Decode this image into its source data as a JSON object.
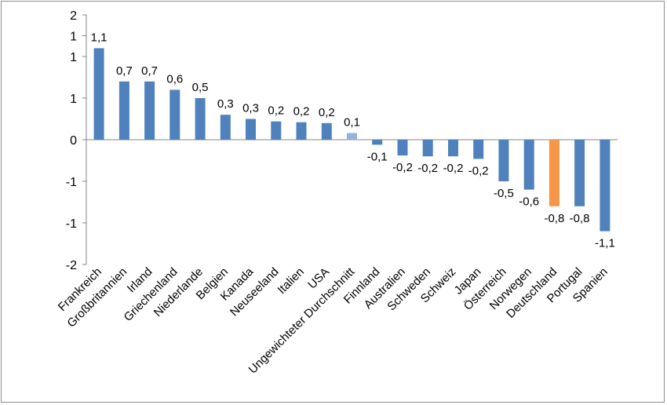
{
  "chart_data": {
    "type": "bar",
    "categories": [
      "Frankreich",
      "Großbritannien",
      "Irland",
      "Griechenland",
      "Niederlande",
      "Belgien",
      "Kanada",
      "Neuseeland",
      "Italien",
      "USA",
      "Ungewichteter Durchschnitt",
      "Finnland",
      "Australien",
      "Schweden",
      "Schweiz",
      "Japan",
      "Österreich",
      "Norwegen",
      "Deutschland",
      "Portugal",
      "Spanien"
    ],
    "values": [
      1.1,
      0.7,
      0.7,
      0.6,
      0.5,
      0.3,
      0.25,
      0.22,
      0.21,
      0.2,
      0.08,
      -0.06,
      -0.19,
      -0.2,
      -0.2,
      -0.23,
      -0.5,
      -0.6,
      -0.8,
      -0.8,
      -1.1
    ],
    "data_labels": [
      "1,1",
      "0,7",
      "0,7",
      "0,6",
      "0,5",
      "0,3",
      "0,3",
      "0,2",
      "0,2",
      "0,2",
      "0,1",
      "-0,1",
      "-0,2",
      "-0,2",
      "-0,2",
      "-0,2",
      "-0,5",
      "-0,6",
      "-0,8",
      "-0,8",
      "-1,1"
    ],
    "bar_colors": [
      "#4f81bd",
      "#4f81bd",
      "#4f81bd",
      "#4f81bd",
      "#4f81bd",
      "#4f81bd",
      "#4f81bd",
      "#4f81bd",
      "#4f81bd",
      "#4f81bd",
      "#95b3d7",
      "#4f81bd",
      "#4f81bd",
      "#4f81bd",
      "#4f81bd",
      "#4f81bd",
      "#4f81bd",
      "#4f81bd",
      "#f79646",
      "#4f81bd",
      "#4f81bd"
    ],
    "y_tick_labels": [
      "2",
      "1",
      "1",
      "1",
      "0",
      "-1",
      "-1",
      "-2"
    ],
    "y_tick_values": [
      1.5,
      1.25,
      1.0,
      0.5,
      0.0,
      -0.5,
      -1.0,
      -1.5
    ],
    "ylim": [
      -1.5,
      1.5
    ],
    "title": "",
    "xlabel": "",
    "ylabel": "",
    "grid": false,
    "legend": "none"
  }
}
